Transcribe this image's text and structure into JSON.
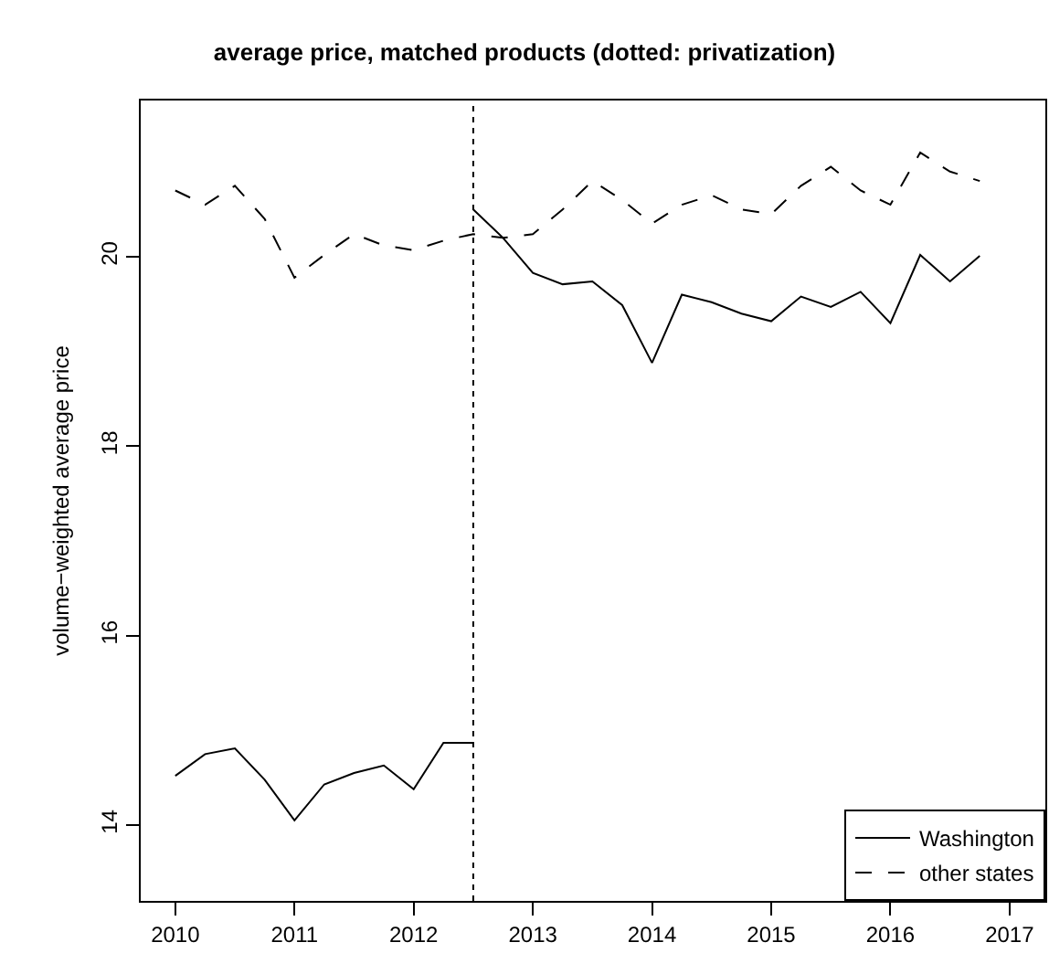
{
  "chart_data": {
    "type": "line",
    "title": "average price, matched products (dotted: privatization)",
    "ylabel": "volume−weighted average price",
    "xlim": [
      2009.71,
      2017.3
    ],
    "xticks": [
      2010,
      2011,
      2012,
      2013,
      2014,
      2015,
      2016,
      2017
    ],
    "ylim": [
      13.2,
      21.65
    ],
    "yticks": [
      14,
      16,
      18,
      20
    ],
    "legend": "bottom right",
    "marker": "none",
    "ref_lines": [
      {
        "axis": "x",
        "value": 2012.5,
        "label": null,
        "line_style": "dotted",
        "color": "#000000"
      }
    ],
    "series": [
      {
        "name": "Washington",
        "color": "#000000",
        "line_style": "solid",
        "x": [
          2010,
          2010.25,
          2010.5,
          2010.75,
          2011,
          2011.25,
          2011.5,
          2011.75,
          2012,
          2012.25,
          2012.5
        ],
        "values": [
          14.52,
          14.75,
          14.81,
          14.48,
          14.05,
          14.43,
          14.55,
          14.63,
          14.38,
          14.87,
          14.87
        ]
      },
      {
        "color": "#000000",
        "line_style": "solid",
        "x": [
          2012.5,
          2012.75,
          2013,
          2013.25,
          2013.5,
          2013.75,
          2014,
          2014.25,
          2014.5,
          2014.75,
          2015,
          2015.25,
          2015.5,
          2015.75,
          2016,
          2016.25,
          2016.5,
          2016.75
        ],
        "values": [
          20.5,
          20.2,
          19.83,
          19.71,
          19.74,
          19.49,
          18.88,
          19.6,
          19.52,
          19.4,
          19.32,
          19.58,
          19.47,
          19.63,
          19.3,
          20.02,
          19.74,
          20.01
        ]
      },
      {
        "name": "other states",
        "color": "#000000",
        "line_style": "dashed",
        "x": [
          2010,
          2010.25,
          2010.5,
          2010.75,
          2011,
          2011.25,
          2011.5,
          2011.75,
          2012,
          2012.25,
          2012.5,
          2012.75,
          2013,
          2013.25,
          2013.5,
          2013.75,
          2014,
          2014.25,
          2014.5,
          2014.75,
          2015,
          2015.25,
          2015.5,
          2015.75,
          2016,
          2016.25,
          2016.5,
          2016.75
        ],
        "values": [
          20.7,
          20.55,
          20.75,
          20.4,
          19.78,
          20.02,
          20.24,
          20.12,
          20.07,
          20.17,
          20.24,
          20.2,
          20.24,
          20.5,
          20.8,
          20.6,
          20.35,
          20.55,
          20.65,
          20.5,
          20.45,
          20.75,
          20.95,
          20.7,
          20.55,
          21.1,
          20.9,
          20.8
        ]
      }
    ]
  }
}
